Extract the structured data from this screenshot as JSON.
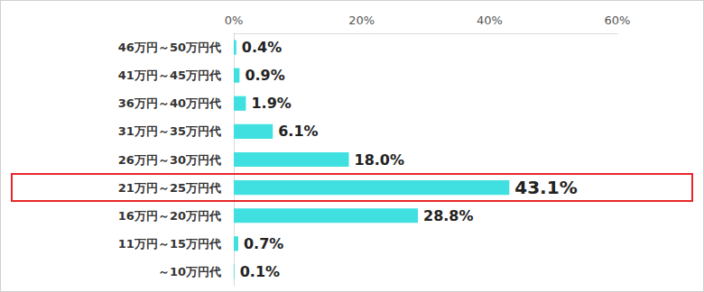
{
  "chart_data": {
    "type": "bar",
    "orientation": "horizontal",
    "categories": [
      "46万円～50万円代",
      "41万円～45万円代",
      "36万円～40万円代",
      "31万円～35万円代",
      "26万円～30万円代",
      "21万円～25万円代",
      "16万円～20万円代",
      "11万円～15万円代",
      "～10万円代"
    ],
    "values": [
      0.4,
      0.9,
      1.9,
      6.1,
      18.0,
      43.1,
      28.8,
      0.7,
      0.1
    ],
    "value_labels": [
      "0.4%",
      "0.9%",
      "1.9%",
      "6.1%",
      "18.0%",
      "43.1%",
      "28.8%",
      "0.7%",
      "0.1%"
    ],
    "color": "#40e0e0",
    "xlim": [
      0,
      60
    ],
    "xticks": [
      {
        "value": 0,
        "label": "0%"
      },
      {
        "value": 20,
        "label": "20%"
      },
      {
        "value": 40,
        "label": "40%"
      },
      {
        "value": 60,
        "label": "60%"
      }
    ],
    "grid": false,
    "data_labels": true
  }
}
